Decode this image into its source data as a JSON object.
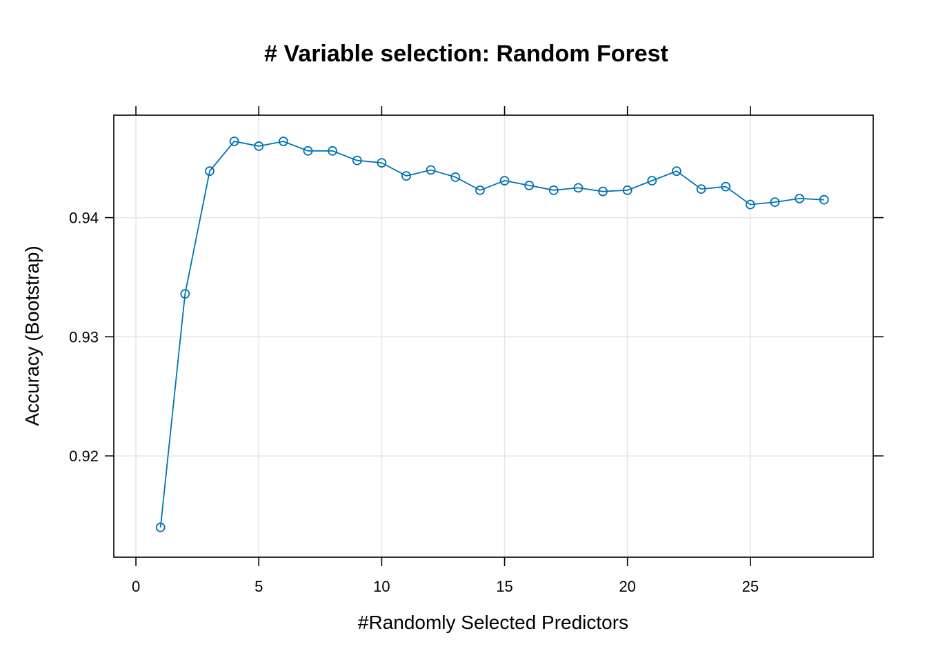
{
  "chart_data": {
    "type": "line",
    "title": "# Variable selection: Random Forest",
    "xlabel": "#Randomly Selected Predictors",
    "ylabel": "Accuracy (Bootstrap)",
    "xlim": [
      -0.9,
      30.0
    ],
    "ylim": [
      0.9115,
      0.9486
    ],
    "xticks": [
      0,
      5,
      10,
      15,
      20,
      25
    ],
    "yticks": [
      0.92,
      0.93,
      0.94
    ],
    "ytick_labels": [
      "0.92",
      "0.93",
      "0.94"
    ],
    "grid": true,
    "color": "#0072B2",
    "series": [
      {
        "x": [
          1,
          2,
          3,
          4,
          5,
          6,
          7,
          8,
          9,
          10,
          11,
          12,
          13,
          14,
          15,
          16,
          17,
          18,
          19,
          20,
          21,
          22,
          23,
          24,
          25,
          26,
          27,
          28
        ],
        "values": [
          0.914,
          0.9336,
          0.9439,
          0.9464,
          0.946,
          0.9464,
          0.9456,
          0.9456,
          0.9448,
          0.9446,
          0.9435,
          0.944,
          0.9434,
          0.9423,
          0.9431,
          0.9427,
          0.9423,
          0.9425,
          0.9422,
          0.9423,
          0.9431,
          0.9439,
          0.9424,
          0.9426,
          0.9411,
          0.9413,
          0.9416,
          0.9415
        ]
      }
    ]
  }
}
